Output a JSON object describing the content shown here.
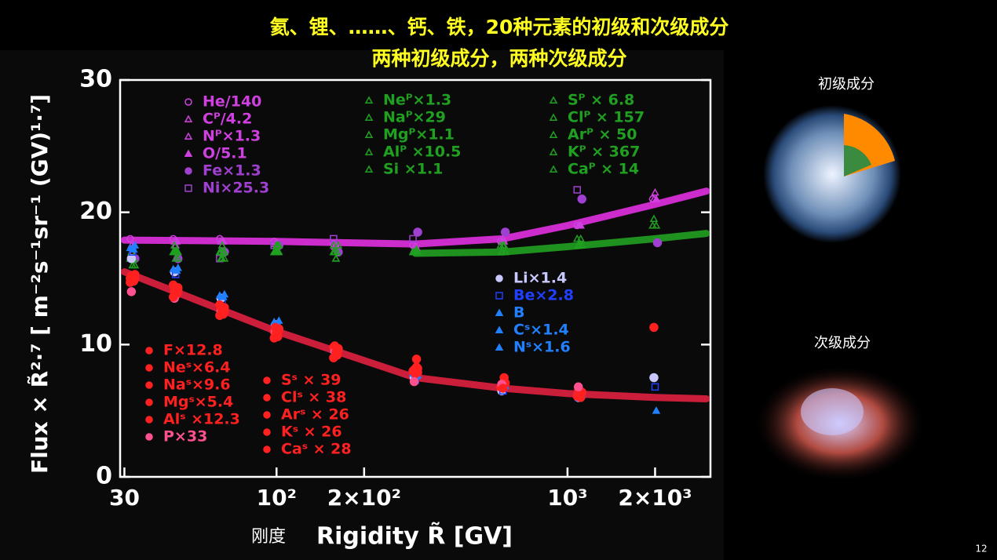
{
  "header": {
    "line1": "氦、锂、……、钙、铁，20种元素的初级和次级成分",
    "line2": "两种初级成分，两种次级成分"
  },
  "side_labels": {
    "primary": "初级成分",
    "secondary": "次级成分"
  },
  "page_number": "12",
  "chart_data": {
    "type": "scatter",
    "xlabel_cn": "刚度",
    "xlabel": "Rigidity R̃ [GV]",
    "ylabel": "Flux × R̃²·⁷ [ m⁻²s⁻¹sr⁻¹ (GV)¹·⁷]",
    "xscale": "log",
    "xlim": [
      29,
      3100
    ],
    "ylim": [
      0,
      30
    ],
    "xticks": [
      30,
      {
        "value": 100,
        "label": "10²"
      },
      {
        "value": 200,
        "label": "2×10²"
      },
      {
        "value": 1000,
        "label": "10³"
      },
      {
        "value": 2000,
        "label": "2×10³"
      }
    ],
    "yticks": [
      0,
      10,
      20,
      30
    ],
    "x": [
      32,
      45,
      65,
      100,
      160,
      300,
      600,
      1100,
      2000
    ],
    "series": [
      {
        "name": "He/140",
        "color": "#d040e0",
        "marker": "circle-open",
        "values": [
          18,
          18,
          18,
          17.8,
          17.6,
          17.5,
          17.8,
          19,
          21
        ]
      },
      {
        "name": "Cᴾ/4.2",
        "color": "#d040e0",
        "marker": "triangle-open",
        "values": [
          17.5,
          17.8,
          17.8,
          17.6,
          17.4,
          17.2,
          17.8,
          19,
          21
        ]
      },
      {
        "name": "Nᴾ×1.3",
        "color": "#d040e0",
        "marker": "triangle-open",
        "values": [
          17,
          17.5,
          17.5,
          17.5,
          17.3,
          17.5,
          18,
          19,
          21.5
        ]
      },
      {
        "name": "O/5.1",
        "color": "#d040e0",
        "marker": "triangle",
        "values": [
          17.5,
          17.8,
          17.8,
          17.6,
          17.4,
          17.3,
          17.8,
          19,
          21
        ]
      },
      {
        "name": "Fe×1.3",
        "color": "#a040d0",
        "marker": "circle",
        "values": [
          16.5,
          16.5,
          17,
          17.5,
          17,
          18.5,
          18.5,
          21,
          17.7
        ]
      },
      {
        "name": "Ni×25.3",
        "color": "#a040d0",
        "marker": "square-open",
        "values": [
          null,
          null,
          16.5,
          17.5,
          18,
          18,
          null,
          21.7,
          null
        ]
      },
      {
        "name": "Neᴾ×1.3",
        "color": "#20a020",
        "marker": "triangle-open",
        "values": [
          16.5,
          17,
          17,
          17,
          17,
          17,
          17,
          17.5,
          19.5
        ]
      },
      {
        "name": "Naᴾ×29",
        "color": "#20a020",
        "marker": "triangle-open",
        "values": [
          16,
          17,
          16.5,
          17.5,
          16.5,
          17,
          17.5,
          17.5,
          null
        ]
      },
      {
        "name": "Mgᴾ×1.1",
        "color": "#20a020",
        "marker": "triangle-open",
        "values": [
          16.5,
          17,
          17,
          17,
          17,
          17.2,
          17.5,
          18,
          19
        ]
      },
      {
        "name": "Alᴾ ×10.5",
        "color": "#20a020",
        "marker": "triangle-open",
        "values": [
          16,
          16.5,
          17,
          17,
          17.5,
          17,
          17,
          17.5,
          null
        ]
      },
      {
        "name": "Si  ×1.1",
        "color": "#20a020",
        "marker": "triangle-open",
        "values": [
          16.5,
          17,
          17,
          17,
          17,
          17,
          17.5,
          18,
          19
        ]
      },
      {
        "name": "Sᴾ × 6.8",
        "color": "#20a020",
        "marker": "triangle-open",
        "values": [
          17,
          17.5,
          16.5,
          17,
          17,
          17,
          17,
          null,
          null
        ]
      },
      {
        "name": "Clᴾ × 157",
        "color": "#20a020",
        "marker": "triangle-open",
        "values": [
          16,
          16.5,
          17.5,
          17,
          16.5,
          null,
          null,
          null,
          null
        ]
      },
      {
        "name": "Arᴾ × 50",
        "color": "#20a020",
        "marker": "triangle-open",
        "values": [
          16.5,
          17,
          17,
          17.5,
          17,
          17,
          null,
          null,
          null
        ]
      },
      {
        "name": "Kᴾ × 367",
        "color": "#20a020",
        "marker": "triangle-open",
        "values": [
          16,
          17,
          16.5,
          17.5,
          null,
          null,
          null,
          null,
          null
        ]
      },
      {
        "name": "Caᴾ × 14",
        "color": "#20a020",
        "marker": "triangle-open",
        "values": [
          16.5,
          17,
          17,
          17,
          17.5,
          17,
          null,
          null,
          null
        ]
      },
      {
        "name": "Li×1.4",
        "color": "#c8c8ff",
        "marker": "circle",
        "values": [
          16.5,
          15.5,
          13.5,
          11.5,
          9.5,
          7.5,
          6.5,
          6,
          7.5
        ]
      },
      {
        "name": "Be×2.8",
        "color": "#2040ff",
        "marker": "square-open",
        "values": [
          17,
          15.3,
          13.3,
          11.3,
          9.3,
          7.3,
          6.5,
          6,
          6.8
        ]
      },
      {
        "name": "B",
        "color": "#2080ff",
        "marker": "triangle",
        "values": [
          17.2,
          15.6,
          13.6,
          11.6,
          9.5,
          7.6,
          6.8,
          6.3,
          5
        ]
      },
      {
        "name": "Cˢ×1.4",
        "color": "#2080ff",
        "marker": "triangle",
        "values": [
          17.5,
          15.8,
          13.8,
          11.8,
          9.7,
          7.7,
          6.9,
          6.2,
          null
        ]
      },
      {
        "name": "Nˢ×1.6",
        "color": "#2080ff",
        "marker": "triangle",
        "values": [
          17.3,
          15.7,
          13.7,
          11.7,
          9.6,
          7.8,
          7,
          6.5,
          null
        ]
      },
      {
        "name": "F×12.8",
        "color": "#ff2020",
        "marker": "circle",
        "values": [
          15,
          14,
          12.5,
          11,
          9.5,
          8,
          7,
          6.5,
          11.3
        ]
      },
      {
        "name": "Neˢ×6.4",
        "color": "#ff2020",
        "marker": "circle",
        "values": [
          15.2,
          14.2,
          12.7,
          10.8,
          9.3,
          7.8,
          6.9,
          6.2,
          null
        ]
      },
      {
        "name": "Naˢ×9.6",
        "color": "#ff2020",
        "marker": "circle",
        "values": [
          14.8,
          13.8,
          12.3,
          10.7,
          9.2,
          8.9,
          7.5,
          6,
          null
        ]
      },
      {
        "name": "Mgˢ×5.4",
        "color": "#ff2020",
        "marker": "circle",
        "values": [
          15.3,
          14.3,
          12.8,
          11.2,
          9.6,
          7.9,
          7.1,
          6.4,
          null
        ]
      },
      {
        "name": "Alˢ ×12.3",
        "color": "#ff2020",
        "marker": "circle",
        "values": [
          15,
          14.5,
          13,
          11,
          9.8,
          8,
          6.8,
          6.1,
          null
        ]
      },
      {
        "name": "P×33",
        "color": "#ff5090",
        "marker": "circle",
        "values": [
          14,
          13.5,
          12.5,
          11,
          9.5,
          7.2,
          7,
          6.8,
          null
        ]
      },
      {
        "name": "Sˢ × 39",
        "color": "#ff2020",
        "marker": "circle",
        "values": [
          15.1,
          14,
          12.6,
          10.9,
          9.4,
          7.9,
          6.7,
          null,
          null
        ]
      },
      {
        "name": "Clˢ × 38",
        "color": "#ff2020",
        "marker": "circle",
        "values": [
          14.9,
          13.9,
          12.4,
          10.6,
          9.2,
          8.3,
          null,
          null,
          null
        ]
      },
      {
        "name": "Arˢ × 26",
        "color": "#ff2020",
        "marker": "circle",
        "values": [
          15,
          14.1,
          12.5,
          11.1,
          9.7,
          8.2,
          null,
          null,
          null
        ]
      },
      {
        "name": "Kˢ × 26",
        "color": "#ff2020",
        "marker": "circle",
        "values": [
          14.7,
          13.6,
          12.2,
          10.5,
          9,
          null,
          null,
          null,
          null
        ]
      },
      {
        "name": "Caˢ × 28",
        "color": "#ff2020",
        "marker": "circle",
        "values": [
          15.2,
          14.4,
          12.9,
          11.3,
          9.9,
          8.1,
          null,
          null,
          null
        ]
      }
    ],
    "fits": [
      {
        "color": "#e030e0",
        "x": [
          30,
          100,
          300,
          600,
          1000,
          2000,
          3000
        ],
        "values": [
          17.9,
          17.8,
          17.6,
          18,
          19,
          20.6,
          21.6
        ]
      },
      {
        "color": "#20a020",
        "x": [
          300,
          600,
          1000,
          2000,
          3000
        ],
        "values": [
          16.9,
          17,
          17.4,
          18,
          18.4
        ]
      },
      {
        "color": "#e02040",
        "x": [
          30,
          100,
          300,
          600,
          1000,
          2000,
          3000
        ],
        "values": [
          15.5,
          11,
          7.5,
          6.7,
          6.3,
          6,
          5.9
        ]
      }
    ]
  }
}
